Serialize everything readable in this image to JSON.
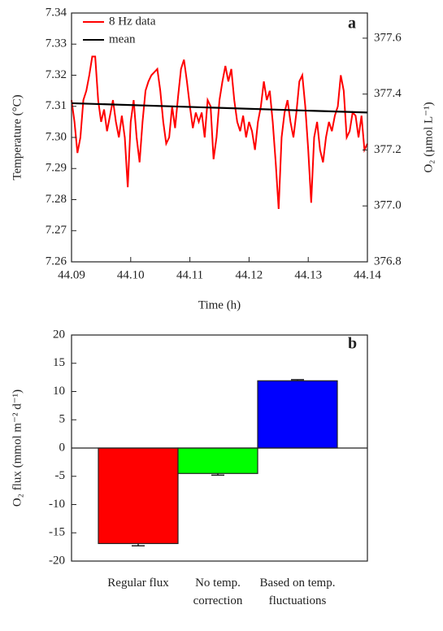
{
  "chart_data": [
    {
      "type": "line",
      "annotation": "a",
      "xlabel": "Time (h)",
      "ylabel": "Temperature (°C)",
      "y2label": "O₂ (µmol L⁻¹)",
      "xlim": [
        44.09,
        44.14
      ],
      "xticks": [
        44.09,
        {
          "value": 44.1,
          "label": "44.10"
        },
        44.11,
        44.12,
        44.13,
        44.14
      ],
      "ylim": [
        7.26,
        7.34
      ],
      "yticks": [
        7.26,
        7.27,
        7.28,
        7.29,
        {
          "value": 7.3,
          "label": "7.30"
        },
        7.31,
        7.32,
        7.33,
        7.34
      ],
      "y2lim": [
        376.8,
        377.69
      ],
      "y2ticks": [
        376.8,
        {
          "value": 377,
          "label": "377.0"
        },
        377.2,
        377.4,
        377.6
      ],
      "legend": "top-left",
      "x": [
        44.09,
        44.0905,
        44.091,
        44.0915,
        44.092,
        44.0925,
        44.093,
        44.0935,
        44.094,
        44.0945,
        44.095,
        44.0955,
        44.096,
        44.0965,
        44.097,
        44.0975,
        44.098,
        44.0985,
        44.099,
        44.0995,
        44.1,
        44.1005,
        44.101,
        44.1015,
        44.102,
        44.1025,
        44.103,
        44.1035,
        44.104,
        44.1045,
        44.105,
        44.1055,
        44.106,
        44.1065,
        44.107,
        44.1075,
        44.108,
        44.1085,
        44.109,
        44.1095,
        44.11,
        44.1105,
        44.111,
        44.1115,
        44.112,
        44.1125,
        44.113,
        44.1135,
        44.114,
        44.1145,
        44.115,
        44.1155,
        44.116,
        44.1165,
        44.117,
        44.1175,
        44.118,
        44.1185,
        44.119,
        44.1195,
        44.12,
        44.1205,
        44.121,
        44.1215,
        44.122,
        44.1225,
        44.123,
        44.1235,
        44.124,
        44.1245,
        44.125,
        44.1255,
        44.126,
        44.1265,
        44.127,
        44.1275,
        44.128,
        44.1285,
        44.129,
        44.1295,
        44.13,
        44.1305,
        44.131,
        44.1315,
        44.132,
        44.1325,
        44.133,
        44.1335,
        44.134,
        44.1345,
        44.135,
        44.1355,
        44.136,
        44.1365,
        44.137,
        44.1375,
        44.138,
        44.1385,
        44.139,
        44.1395,
        44.14
      ],
      "series": [
        {
          "name": "8 Hz data",
          "color": "#ff0000",
          "values": [
            7.312,
            7.305,
            7.295,
            7.3,
            7.312,
            7.315,
            7.32,
            7.326,
            7.326,
            7.312,
            7.305,
            7.309,
            7.302,
            7.307,
            7.312,
            7.305,
            7.3,
            7.307,
            7.3,
            7.284,
            7.305,
            7.312,
            7.3,
            7.292,
            7.305,
            7.315,
            7.318,
            7.32,
            7.321,
            7.322,
            7.315,
            7.305,
            7.298,
            7.3,
            7.31,
            7.303,
            7.313,
            7.322,
            7.325,
            7.318,
            7.31,
            7.303,
            7.308,
            7.305,
            7.308,
            7.3,
            7.312,
            7.31,
            7.293,
            7.3,
            7.312,
            7.318,
            7.323,
            7.318,
            7.322,
            7.312,
            7.305,
            7.302,
            7.307,
            7.3,
            7.305,
            7.302,
            7.296,
            7.305,
            7.31,
            7.318,
            7.312,
            7.315,
            7.305,
            7.292,
            7.277,
            7.3,
            7.308,
            7.312,
            7.305,
            7.3,
            7.308,
            7.318,
            7.32,
            7.31,
            7.296,
            7.279,
            7.3,
            7.305,
            7.296,
            7.292,
            7.3,
            7.305,
            7.302,
            7.307,
            7.31,
            7.32,
            7.315,
            7.3,
            7.302,
            7.308,
            7.307,
            7.3,
            7.307,
            7.296,
            7.298
          ]
        },
        {
          "name": "mean",
          "color": "#000000",
          "x": [
            44.09,
            44.14
          ],
          "values": [
            7.311,
            7.308
          ]
        }
      ]
    },
    {
      "type": "bar",
      "annotation": "b",
      "ylabel": "O₂ flux (mmol m⁻² d⁻¹)",
      "categories": [
        "Regular flux",
        "No temp. correction",
        "Based on temp. fluctuations"
      ],
      "values": [
        -16.9,
        -4.5,
        11.9
      ],
      "errors": [
        0.4,
        0.3,
        0.2
      ],
      "colors": [
        "#ff0000",
        "#00ff00",
        "#0000ff"
      ],
      "ylim": [
        -20,
        20
      ],
      "yticks": [
        -20,
        -15,
        -10,
        -5,
        0,
        5,
        10,
        15,
        20
      ]
    }
  ]
}
